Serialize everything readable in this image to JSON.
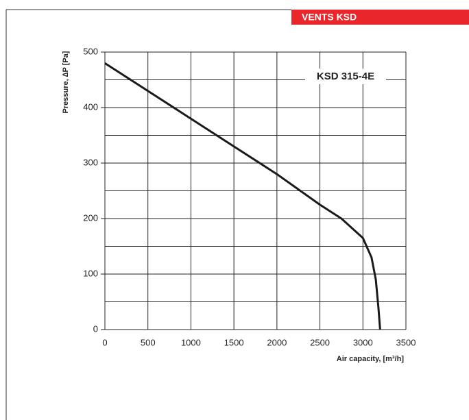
{
  "brand": "VENTS KSD",
  "chart_data": {
    "type": "line",
    "x_label": "Air capacity, [m³/h]",
    "y_label": "Pressure, ∆P [Pa]",
    "x": [
      0,
      500,
      1000,
      1500,
      2000,
      2500,
      2750,
      3000,
      3100,
      3150,
      3180,
      3200
    ],
    "series": [
      {
        "name": "KSD 315-4E",
        "color": "#1a1a1a",
        "values": [
          480,
          430,
          380,
          330,
          280,
          225,
          200,
          165,
          130,
          90,
          40,
          0
        ]
      }
    ],
    "xlim": [
      0,
      3500
    ],
    "xticks": [
      0,
      500,
      1000,
      1500,
      2000,
      2500,
      3000,
      3500
    ],
    "ylim": [
      0,
      500
    ],
    "yticks": [
      0,
      100,
      200,
      300,
      400,
      500
    ],
    "y_minor_ticks": [
      50,
      150,
      250,
      350,
      450
    ],
    "grid": true,
    "legend": "upper right"
  }
}
